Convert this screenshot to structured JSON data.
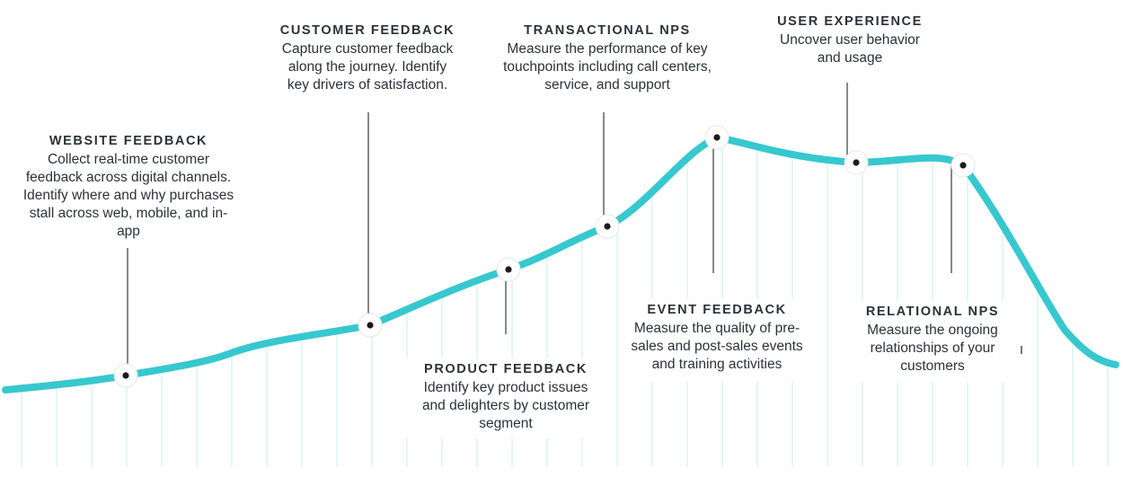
{
  "colors": {
    "curve": "#37c8cf",
    "grid": "#c9ecef",
    "text": "#2b3238",
    "leader": "#3a3a3a",
    "node_fill": "#ffffff",
    "node_dot": "#1b1b1b"
  },
  "stages": [
    {
      "title": "WEBSITE FEEDBACK",
      "description": "Collect real-time customer\nfeedback across digital channels.\nIdentify where and why purchases\nstall across web, mobile, and in-\napp"
    },
    {
      "title": "CUSTOMER FEEDBACK",
      "description": "Capture customer feedback\nalong the journey.  Identify\nkey drivers of satisfaction."
    },
    {
      "title": "PRODUCT FEEDBACK",
      "description": "Identify key product issues\nand delighters by customer\nsegment"
    },
    {
      "title": "TRANSACTIONAL NPS",
      "description": "Measure the performance of key\ntouchpoints including call centers,\nservice, and support"
    },
    {
      "title": "EVENT FEEDBACK",
      "description": "Measure the quality of pre-\nsales and post-sales events\nand training activities"
    },
    {
      "title": "USER EXPERIENCE",
      "description": "Uncover user behavior\nand usage"
    },
    {
      "title": "RELATIONAL NPS",
      "description": "Measure the ongoing\nrelationships of your\ncustomers"
    }
  ]
}
